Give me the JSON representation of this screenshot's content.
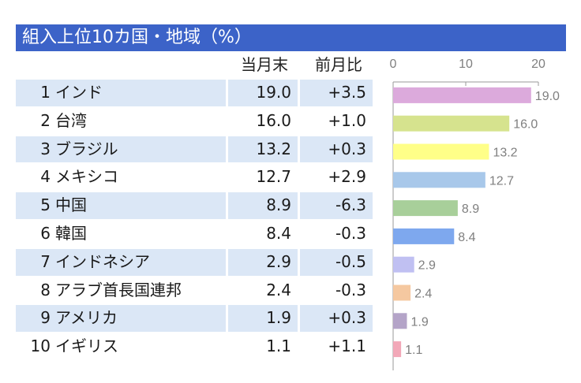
{
  "title": "組入上位10カ国・地域（%）",
  "headers": {
    "current": "当月末",
    "change": "前月比"
  },
  "rows": [
    {
      "rank": "1",
      "name": "インド",
      "current": "19.0",
      "change": "+3.5"
    },
    {
      "rank": "2",
      "name": "台湾",
      "current": "16.0",
      "change": "+1.0"
    },
    {
      "rank": "3",
      "name": "ブラジル",
      "current": "13.2",
      "change": "+0.3"
    },
    {
      "rank": "4",
      "name": "メキシコ",
      "current": "12.7",
      "change": "+2.9"
    },
    {
      "rank": "5",
      "name": "中国",
      "current": "8.9",
      "change": "-6.3"
    },
    {
      "rank": "6",
      "name": "韓国",
      "current": "8.4",
      "change": "-0.3"
    },
    {
      "rank": "7",
      "name": "インドネシア",
      "current": "2.9",
      "change": "-0.5"
    },
    {
      "rank": "8",
      "name": "アラブ首長国連邦",
      "current": "2.4",
      "change": "-0.3"
    },
    {
      "rank": "9",
      "name": "アメリカ",
      "current": "1.9",
      "change": "+0.3"
    },
    {
      "rank": "10",
      "name": "イギリス",
      "current": "1.1",
      "change": "+1.1"
    }
  ],
  "chart_data": {
    "type": "bar",
    "orientation": "horizontal",
    "categories": [
      "インド",
      "台湾",
      "ブラジル",
      "メキシコ",
      "中国",
      "韓国",
      "インドネシア",
      "アラブ首長国連邦",
      "アメリカ",
      "イギリス"
    ],
    "values": [
      19.0,
      16.0,
      13.2,
      12.7,
      8.9,
      8.4,
      2.9,
      2.4,
      1.9,
      1.1
    ],
    "value_labels": [
      "19.0",
      "16.0",
      "13.2",
      "12.7",
      "8.9",
      "8.4",
      "2.9",
      "2.4",
      "1.9",
      "1.1"
    ],
    "xlim": [
      0,
      20
    ],
    "xticks": [
      "0",
      "10",
      "20"
    ],
    "grid": false,
    "colors": [
      "#dcaadc",
      "#d6e38e",
      "#ffff88",
      "#a8c8ea",
      "#a8cf9a",
      "#7ea8ee",
      "#c0c0f2",
      "#f5c8a0",
      "#b4a4c8",
      "#f2a8b8"
    ]
  }
}
